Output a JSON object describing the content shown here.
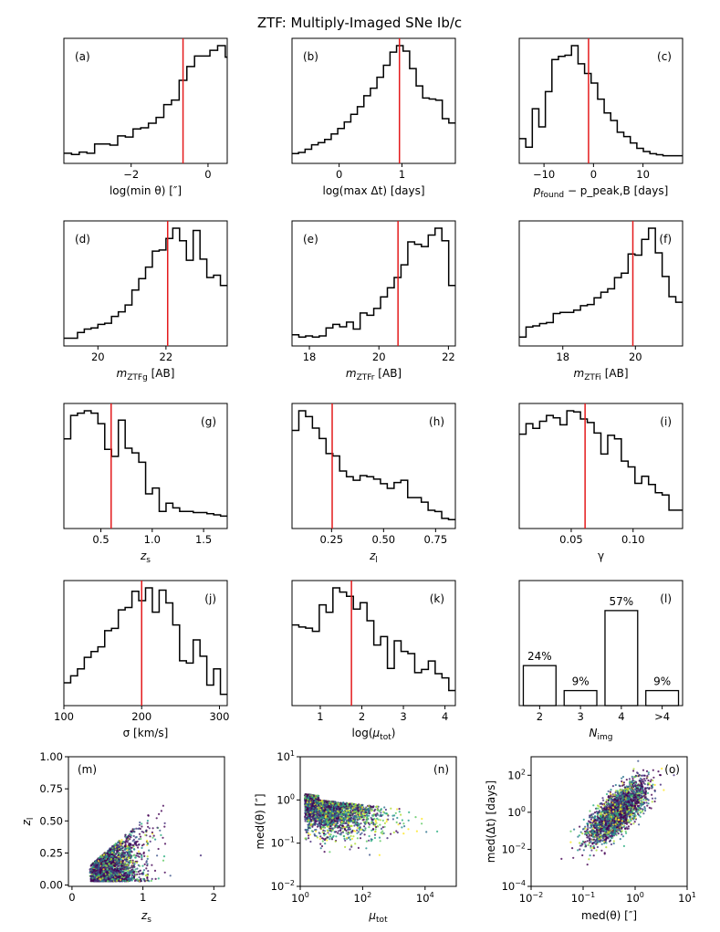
{
  "figure": {
    "title": "ZTF: Multiply-Imaged SNe Ib/c"
  },
  "panels": [
    {
      "label": "(a)",
      "xlabel": "log(min θ) [″]",
      "ticks": [
        -2,
        0
      ],
      "tick_labels": [
        "−2",
        "0"
      ],
      "xlim": [
        -3.75,
        0.5
      ],
      "ref": -0.65,
      "label_side": "left",
      "hist": {
        "start": -3.75,
        "width": 0.2,
        "counts": [
          4,
          3,
          5,
          4,
          12,
          12,
          11,
          19,
          18,
          25,
          26,
          30,
          35,
          46,
          50,
          67,
          79,
          88,
          88,
          93,
          97,
          87,
          84,
          45
        ]
      }
    },
    {
      "label": "(b)",
      "xlabel": "log(max Δt) [days]",
      "ticks": [
        0,
        1
      ],
      "tick_labels": [
        "0",
        "1"
      ],
      "xlim": [
        -0.75,
        1.85
      ],
      "ref": 0.96,
      "label_side": "left",
      "hist": {
        "start": -0.75,
        "width": 0.104,
        "counts": [
          4,
          5,
          8,
          12,
          14,
          17,
          22,
          27,
          33,
          40,
          47,
          57,
          64,
          74,
          85,
          97,
          103,
          98,
          82,
          66,
          55,
          54,
          53,
          36,
          32
        ]
      }
    },
    {
      "label": "(c)",
      "xlabel": "p_found − p_peak,B [days]",
      "ticks": [
        -10,
        0,
        10
      ],
      "tick_labels": [
        "−10",
        "0",
        "10"
      ],
      "xlim": [
        -15,
        18
      ],
      "ref": -1,
      "label_side": "right",
      "hist": {
        "start": -15,
        "width": 1.32,
        "counts": [
          18,
          10,
          46,
          29,
          62,
          92,
          95,
          96,
          105,
          88,
          79,
          70,
          55,
          42,
          35,
          24,
          20,
          14,
          9,
          6,
          4,
          3,
          2,
          2,
          2
        ]
      }
    },
    {
      "label": "(d)",
      "xlabel": "m_ZTFg [AB]",
      "ticks": [
        20,
        22
      ],
      "tick_labels": [
        "20",
        "22"
      ],
      "xlim": [
        19.0,
        23.8
      ],
      "ref": 22.05,
      "label_side": "left",
      "hist": {
        "start": 19.0,
        "width": 0.2,
        "counts": [
          2,
          2,
          7,
          10,
          11,
          14,
          15,
          21,
          25,
          31,
          44,
          54,
          64,
          78,
          79,
          89,
          98,
          87,
          70,
          96,
          71,
          55,
          57,
          48
        ]
      }
    },
    {
      "label": "(e)",
      "xlabel": "m_ZTFr [AB]",
      "ticks": [
        18,
        20,
        22
      ],
      "tick_labels": [
        "18",
        "20",
        "22"
      ],
      "xlim": [
        17.5,
        22.2
      ],
      "ref": 20.55,
      "label_side": "left",
      "hist": {
        "start": 17.5,
        "width": 0.196,
        "counts": [
          5,
          3,
          4,
          3,
          4,
          11,
          14,
          12,
          16,
          10,
          24,
          22,
          28,
          38,
          46,
          55,
          66,
          86,
          84,
          82,
          92,
          98,
          87,
          48
        ]
      }
    },
    {
      "label": "(f)",
      "xlabel": "m_ZTFi [AB]",
      "ticks": [
        18,
        20
      ],
      "tick_labels": [
        "18",
        "20"
      ],
      "xlim": [
        16.8,
        21.3
      ],
      "ref": 19.93,
      "label_side": "right",
      "hist": {
        "start": 16.8,
        "width": 0.1875,
        "counts": [
          3,
          12,
          13,
          15,
          16,
          24,
          25,
          25,
          27,
          31,
          32,
          38,
          43,
          46,
          56,
          60,
          77,
          76,
          90,
          100,
          78,
          57,
          39,
          34
        ]
      }
    },
    {
      "label": "(g)",
      "xlabel": "z_s",
      "ticks": [
        0.5,
        1.0,
        1.5
      ],
      "tick_labels": [
        "0.5",
        "1.0",
        "1.5"
      ],
      "xlim": [
        0.14,
        1.73
      ],
      "ref": 0.6,
      "label_side": "right",
      "hist": {
        "start": 0.14,
        "width": 0.0663,
        "counts": [
          72,
          92,
          94,
          96,
          94,
          85,
          63,
          57,
          88,
          64,
          60,
          52,
          25,
          30,
          10,
          17,
          13,
          10,
          10,
          9,
          9,
          8,
          7,
          6
        ]
      }
    },
    {
      "label": "(h)",
      "xlabel": "z_l",
      "ticks": [
        0.25,
        0.5,
        0.75
      ],
      "tick_labels": [
        "0.25",
        "0.50",
        "0.75"
      ],
      "xlim": [
        0.06,
        0.845
      ],
      "ref": 0.253,
      "label_side": "right",
      "hist": {
        "start": 0.06,
        "width": 0.0327,
        "counts": [
          80,
          97,
          92,
          82,
          73,
          60,
          58,
          45,
          40,
          37,
          41,
          40,
          38,
          34,
          30,
          35,
          37,
          22,
          22,
          18,
          11,
          10,
          4,
          3
        ]
      }
    },
    {
      "label": "(i)",
      "xlabel": "γ",
      "ticks": [
        0.05,
        0.1
      ],
      "tick_labels": [
        "0.05",
        "0.10"
      ],
      "xlim": [
        0.008,
        0.14
      ],
      "ref": 0.0612,
      "label_side": "right",
      "hist": {
        "start": 0.008,
        "width": 0.0055,
        "counts": [
          76,
          85,
          81,
          87,
          92,
          90,
          84,
          96,
          95,
          89,
          86,
          77,
          59,
          75,
          72,
          53,
          48,
          34,
          40,
          33,
          26,
          24,
          11,
          11
        ]
      }
    },
    {
      "label": "(j)",
      "xlabel": "σ [km/s]",
      "ticks": [
        100,
        200,
        300
      ],
      "tick_labels": [
        "100",
        "200",
        "300"
      ],
      "xlim": [
        100,
        310
      ],
      "ref": 200,
      "label_side": "right",
      "hist": {
        "start": 100,
        "width": 8.75,
        "counts": [
          15,
          21,
          27,
          37,
          42,
          46,
          60,
          62,
          78,
          80,
          94,
          86,
          97,
          76,
          95,
          84,
          65,
          34,
          32,
          52,
          38,
          13,
          27,
          5
        ]
      }
    },
    {
      "label": "(k)",
      "xlabel": "log(μ_tot)",
      "ticks": [
        1,
        2,
        3,
        4
      ],
      "tick_labels": [
        "1",
        "2",
        "3",
        "4"
      ],
      "xlim": [
        0.32,
        4.25
      ],
      "ref": 1.75,
      "label_side": "right",
      "hist": {
        "start": 0.32,
        "width": 0.164,
        "counts": [
          71,
          69,
          68,
          65,
          90,
          83,
          106,
          102,
          98,
          86,
          92,
          75,
          52,
          60,
          30,
          56,
          46,
          44,
          26,
          29,
          37,
          25,
          21,
          9
        ]
      }
    },
    {
      "label": "(l)",
      "xlabel": "N_img",
      "label_side": "right",
      "bars": {
        "categories": [
          "2",
          "3",
          "4",
          ">4"
        ],
        "values": [
          24,
          9,
          57,
          9
        ],
        "labels": [
          "24%",
          "9%",
          "57%",
          "9%"
        ]
      }
    }
  ],
  "scatters": [
    {
      "label": "(m)",
      "xlabel": "z_s",
      "ylabel": "z_l",
      "xlim": [
        -0.05,
        2.15
      ],
      "ylim": [
        -0.01,
        1.0
      ],
      "xticks": [
        "0",
        "1",
        "2"
      ],
      "yticks": [
        "0.00",
        "0.25",
        "0.50",
        "0.75",
        "1.00"
      ]
    },
    {
      "label": "(n)",
      "xlabel": "μ_tot",
      "ylabel": "med(θ) [″]",
      "xscale": "log",
      "yscale": "log"
    },
    {
      "label": "(o)",
      "xlabel": "med(θ) [″]",
      "ylabel": "med(Δt) [days]",
      "xscale": "log",
      "yscale": "log"
    }
  ],
  "chart_data": [
    {
      "type": "bar",
      "title": "ZTF: Multiply-Imaged SNe Ib/c",
      "categories": [
        "2",
        "3",
        "4",
        ">4"
      ],
      "values": [
        24,
        9,
        57,
        9
      ],
      "xlabel": "N_img",
      "ylabel": ""
    },
    {
      "type": "scatter",
      "xlabel": "z_s",
      "ylabel": "z_l",
      "xlim": [
        0,
        2.1
      ],
      "ylim": [
        0,
        1.0
      ]
    },
    {
      "type": "scatter",
      "xlabel": "μ_tot",
      "ylabel": "med(θ) [″]",
      "xlim": [
        1,
        100000
      ],
      "ylim": [
        0.01,
        10
      ],
      "xscale": "log",
      "yscale": "log"
    },
    {
      "type": "scatter",
      "xlabel": "med(θ) [″]",
      "ylabel": "med(Δt) [days]",
      "xlim": [
        0.01,
        10
      ],
      "ylim": [
        0.0001,
        1000
      ],
      "xscale": "log",
      "yscale": "log"
    }
  ]
}
